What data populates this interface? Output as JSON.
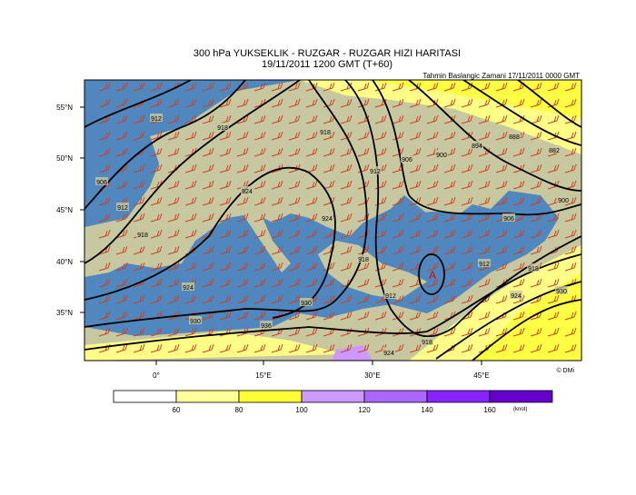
{
  "header": {
    "title": "300 hPa YUKSEKLIK - RUZGAR - RUZGAR HIZI HARITASI",
    "subtitle": "19/11/2011 1200 GMT (T+60)",
    "forecast_base": "Tahmin Baslangic Zamani 17/11/2011 0000 GMT"
  },
  "axes": {
    "lat_labels": [
      "55°N",
      "50°N",
      "45°N",
      "40°N",
      "35°N"
    ],
    "lon_labels": [
      "0°",
      "15°E",
      "30°E",
      "45°E"
    ]
  },
  "contour_labels": [
    "912",
    "918",
    "906",
    "912",
    "918",
    "924",
    "924",
    "918",
    "912",
    "906",
    "918",
    "912",
    "924",
    "930",
    "930",
    "936",
    "924",
    "918",
    "894",
    "900",
    "888",
    "882",
    "900",
    "906",
    "912",
    "918",
    "924",
    "930"
  ],
  "marker": "A",
  "credit": "© DMi",
  "colorbar": {
    "colors": [
      "#ffffff",
      "#ffff99",
      "#ffff33",
      "#cc99ff",
      "#aa66ff",
      "#8822ff",
      "#6600cc"
    ],
    "labels": [
      "60",
      "80",
      "100",
      "120",
      "140",
      "160"
    ],
    "unit": "(knot)"
  }
}
